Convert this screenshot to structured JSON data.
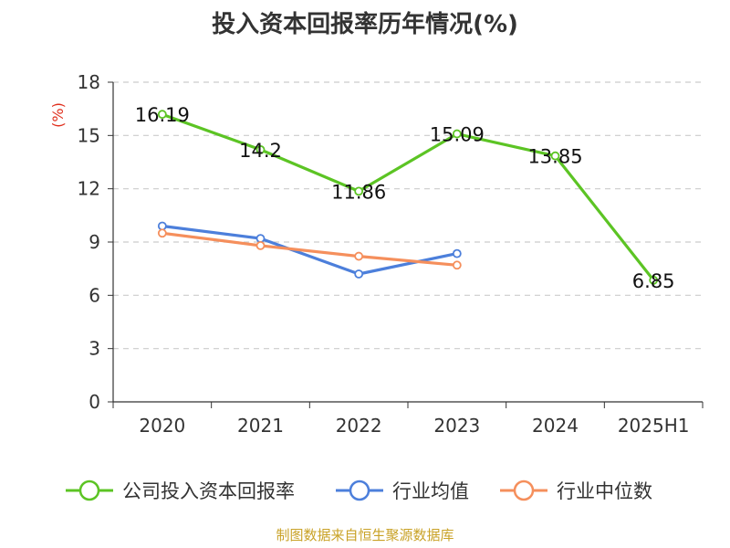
{
  "title": "投入资本回报率历年情况(%)",
  "source": "制图数据来自恒生聚源数据库",
  "chart_data": {
    "type": "line",
    "title": "投入资本回报率历年情况(%)",
    "xlabel": "",
    "ylabel": "(%)",
    "ylim": [
      0,
      18
    ],
    "yticks": [
      0,
      3,
      6,
      9,
      12,
      15,
      18
    ],
    "categories": [
      "2020",
      "2021",
      "2022",
      "2023",
      "2024",
      "2025H1"
    ],
    "grid": true,
    "legend_position": "bottom",
    "series": [
      {
        "name": "公司投入资本回报率",
        "color": "#5cc424",
        "values": [
          16.19,
          14.2,
          11.86,
          15.09,
          13.85,
          6.85
        ],
        "labels": true
      },
      {
        "name": "行业均值",
        "color": "#4c7fdb",
        "values": [
          9.9,
          9.2,
          7.2,
          8.35,
          null,
          null
        ],
        "labels": false
      },
      {
        "name": "行业中位数",
        "color": "#f58f5c",
        "values": [
          9.5,
          8.8,
          8.2,
          7.7,
          null,
          null
        ],
        "labels": false
      }
    ]
  }
}
